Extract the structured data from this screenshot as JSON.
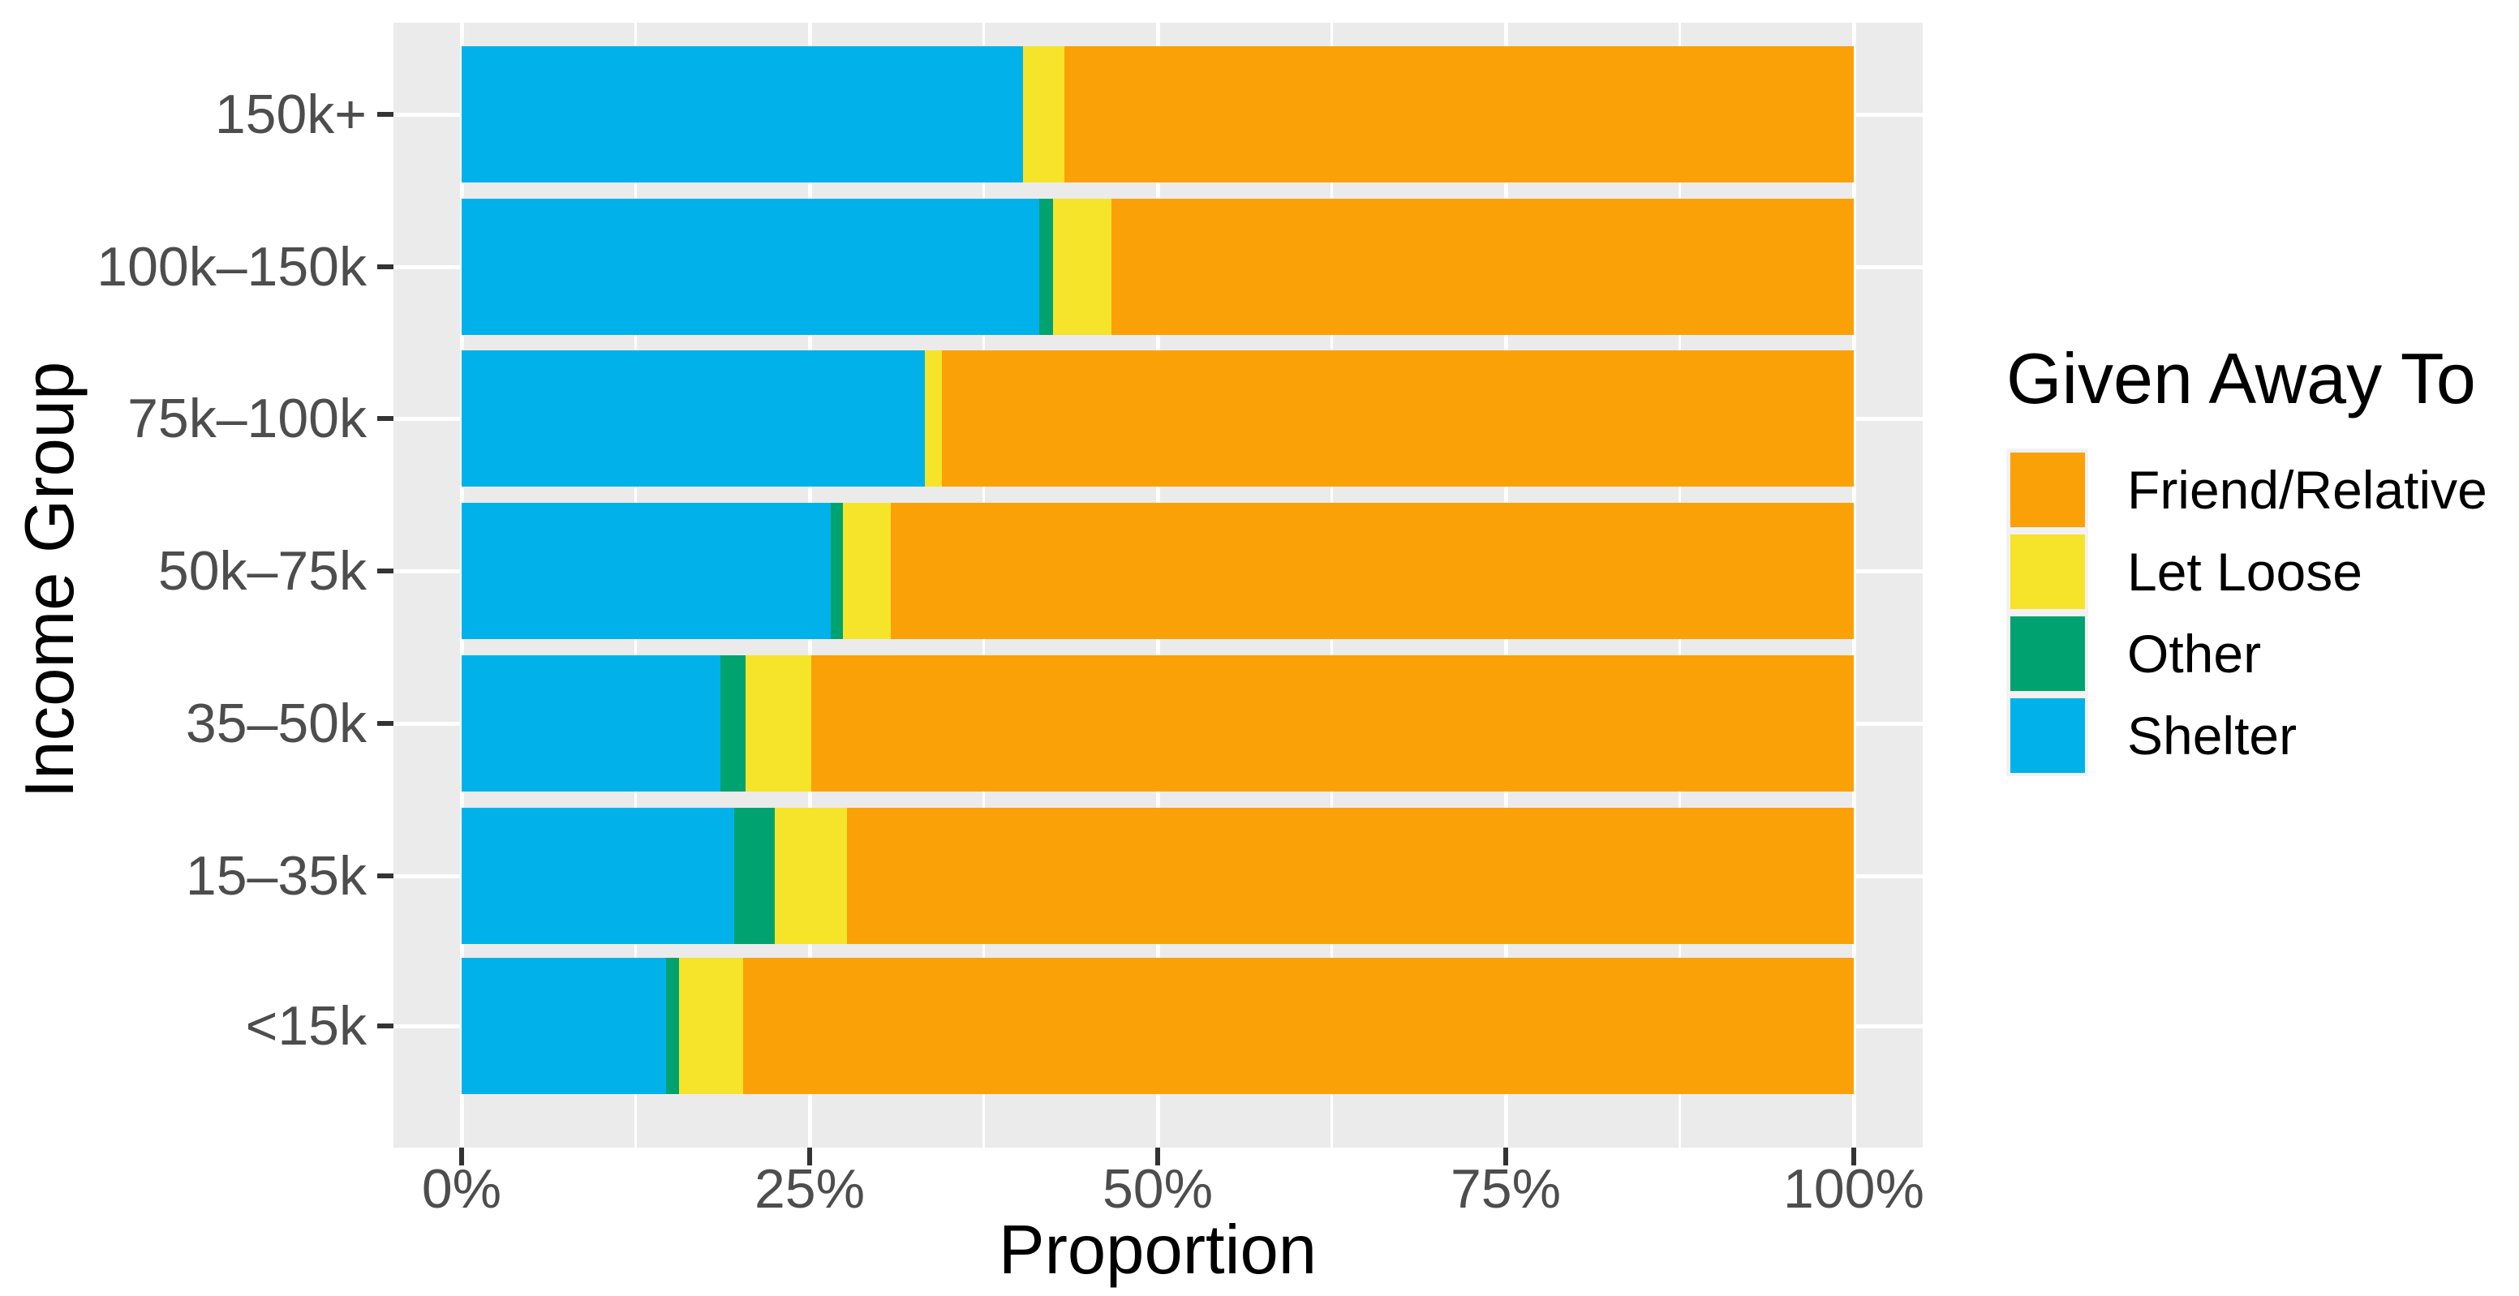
{
  "chart_data": {
    "type": "bar",
    "orientation": "horizontal",
    "stacked": true,
    "title": "",
    "xlabel": "Proportion",
    "ylabel": "Income Group",
    "categories": [
      "150k+",
      "100k–150k",
      "75k–100k",
      "50k–75k",
      "35–50k",
      "15–35k",
      "<15k"
    ],
    "series": [
      {
        "name": "Friend/Relative",
        "color": "#FBA108",
        "values_pct": [
          56.7,
          53.3,
          65.5,
          69.2,
          74.9,
          72.3,
          79.8
        ]
      },
      {
        "name": "Let Loose",
        "color": "#F5E42A",
        "values_pct": [
          3.0,
          4.2,
          1.2,
          3.4,
          4.7,
          5.2,
          4.6
        ]
      },
      {
        "name": "Other",
        "color": "#00A36F",
        "values_pct": [
          0.0,
          1.0,
          0.0,
          0.9,
          1.8,
          2.9,
          0.9
        ]
      },
      {
        "name": "Shelter",
        "color": "#00B2E9",
        "values_pct": [
          40.3,
          41.5,
          33.3,
          26.5,
          18.6,
          19.6,
          14.7
        ]
      }
    ],
    "stack_order_left_to_right": [
      "Shelter",
      "Other",
      "Let Loose",
      "Friend/Relative"
    ],
    "xlim_pct": [
      0,
      100
    ],
    "x_ticks": [
      {
        "pct": 0,
        "label": "0%"
      },
      {
        "pct": 25,
        "label": "25%"
      },
      {
        "pct": 50,
        "label": "50%"
      },
      {
        "pct": 75,
        "label": "75%"
      },
      {
        "pct": 100,
        "label": "100%"
      }
    ],
    "x_minor_ticks_pct": [
      12.5,
      37.5,
      62.5,
      87.5
    ],
    "grid": "white major and minor vertical gridlines plus horizontal gridlines at category centers on gray panel",
    "legend": {
      "title": "Given Away To",
      "position": "right",
      "items": [
        "Friend/Relative",
        "Let Loose",
        "Other",
        "Shelter"
      ]
    }
  },
  "style": {
    "figure_bg": "#FFFFFF",
    "panel_bg": "#EBEBEB",
    "grid_color": "#FFFFFF",
    "tick_color": "#333333",
    "axis_text_color": "#4D4D4D",
    "title_color": "#000000",
    "legend_key_bg": "#F2F2F2"
  }
}
